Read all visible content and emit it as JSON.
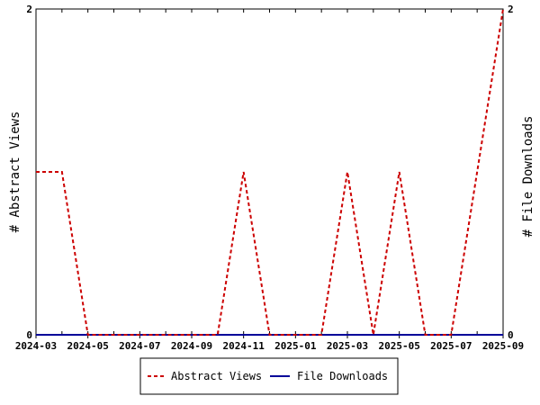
{
  "chart_data": {
    "type": "line",
    "x": [
      "2024-03",
      "2024-04",
      "2024-05",
      "2024-06",
      "2024-07",
      "2024-08",
      "2024-09",
      "2024-10",
      "2024-11",
      "2024-12",
      "2025-01",
      "2025-02",
      "2025-03",
      "2025-04",
      "2025-05",
      "2025-06",
      "2025-07",
      "2025-08",
      "2025-09"
    ],
    "series": [
      {
        "name": "Abstract Views",
        "axis": "left",
        "color": "#cc0000",
        "dash": "dashed",
        "values": [
          1,
          1,
          0,
          0,
          0,
          0,
          0,
          0,
          1,
          0,
          0,
          0,
          1,
          0,
          1,
          0,
          0,
          1,
          2
        ]
      },
      {
        "name": "File Downloads",
        "axis": "right",
        "color": "#000099",
        "dash": "solid",
        "values": [
          0,
          0,
          0,
          0,
          0,
          0,
          0,
          0,
          0,
          0,
          0,
          0,
          0,
          0,
          0,
          0,
          0,
          0,
          0
        ]
      }
    ],
    "xtick_labels": [
      "2024-03",
      "2024-05",
      "2024-07",
      "2024-09",
      "2024-11",
      "2025-01",
      "2025-03",
      "2025-05",
      "2025-07",
      "2025-09"
    ],
    "ylabel_left": "# Abstract Views",
    "ylabel_right": "# File Downloads",
    "ylim_left": [
      0,
      2
    ],
    "ylim_right": [
      0,
      2
    ],
    "ytick_labels_left": [
      "0",
      "2"
    ],
    "ytick_labels_right": [
      "0",
      "2"
    ],
    "grid": false,
    "legend_position": "bottom-center"
  }
}
